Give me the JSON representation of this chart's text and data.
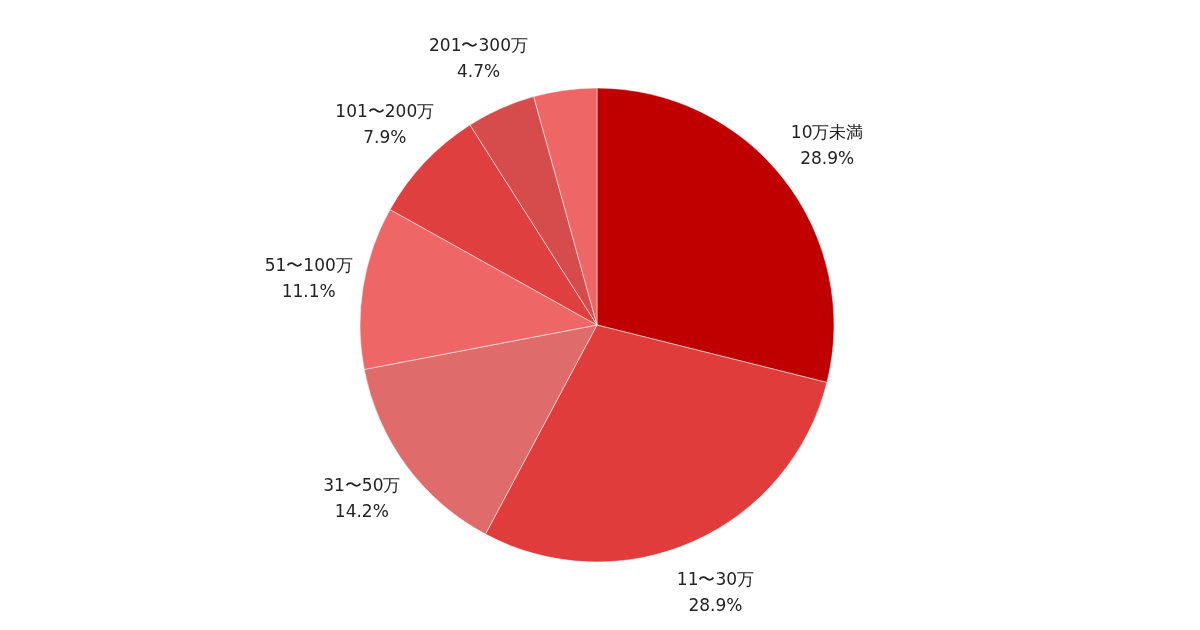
{
  "chart_data": {
    "type": "pie",
    "categories": [
      "10万未満",
      "11〜30万",
      "31〜50万",
      "51〜100万",
      "101〜200万",
      "201〜300万",
      null
    ],
    "values": [
      28.9,
      28.9,
      14.2,
      11.1,
      7.9,
      4.7,
      4.3
    ],
    "value_labels": [
      "28.9%",
      "28.9%",
      "14.2%",
      "11.1%",
      "7.9%",
      "4.7%",
      null
    ],
    "colors": [
      "#c00000",
      "#e03c3c",
      "#e06b6b",
      "#ee6666",
      "#df3f3f",
      "#d64b4b",
      "#ee6666"
    ]
  }
}
